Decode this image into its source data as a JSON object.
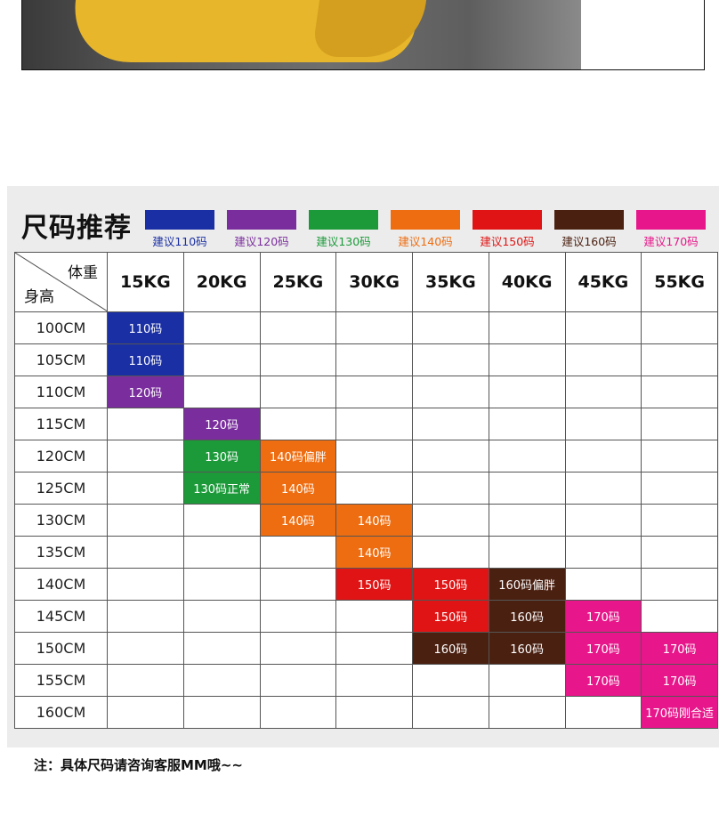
{
  "colors": {
    "110": "#1a2fa3",
    "120": "#7a2d9d",
    "130": "#1c9a3a",
    "140": "#ee6d11",
    "150": "#e01414",
    "160": "#4a2011",
    "170": "#e7168a"
  },
  "chart": {
    "title": "尺码推荐",
    "legend": [
      {
        "key": "110",
        "label": "建议110码",
        "label_color": "#1a2fa3"
      },
      {
        "key": "120",
        "label": "建议120码",
        "label_color": "#7a2d9d"
      },
      {
        "key": "130",
        "label": "建议130码",
        "label_color": "#1c9a3a"
      },
      {
        "key": "140",
        "label": "建议140码",
        "label_color": "#ee6d11"
      },
      {
        "key": "150",
        "label": "建议150码",
        "label_color": "#e01414"
      },
      {
        "key": "160",
        "label": "建议160码",
        "label_color": "#4a2011"
      },
      {
        "key": "170",
        "label": "建议170码",
        "label_color": "#e7168a"
      }
    ],
    "corner": {
      "weight_label": "体重",
      "height_label": "身高"
    },
    "weights": [
      "15KG",
      "20KG",
      "25KG",
      "30KG",
      "35KG",
      "40KG",
      "45KG",
      "55KG"
    ],
    "rows": [
      {
        "height": "100CM",
        "cells": [
          {
            "text": "110码",
            "c": "110"
          },
          null,
          null,
          null,
          null,
          null,
          null,
          null
        ]
      },
      {
        "height": "105CM",
        "cells": [
          {
            "text": "110码",
            "c": "110"
          },
          null,
          null,
          null,
          null,
          null,
          null,
          null
        ]
      },
      {
        "height": "110CM",
        "cells": [
          {
            "text": "120码",
            "c": "120"
          },
          null,
          null,
          null,
          null,
          null,
          null,
          null
        ]
      },
      {
        "height": "115CM",
        "cells": [
          null,
          {
            "text": "120码",
            "c": "120"
          },
          null,
          null,
          null,
          null,
          null,
          null
        ]
      },
      {
        "height": "120CM",
        "cells": [
          null,
          {
            "text": "130码",
            "c": "130"
          },
          {
            "text": "140码偏胖",
            "c": "140"
          },
          null,
          null,
          null,
          null,
          null
        ]
      },
      {
        "height": "125CM",
        "cells": [
          null,
          {
            "text": "130码正常",
            "c": "130"
          },
          {
            "text": "140码",
            "c": "140"
          },
          null,
          null,
          null,
          null,
          null
        ]
      },
      {
        "height": "130CM",
        "cells": [
          null,
          null,
          {
            "text": "140码",
            "c": "140"
          },
          {
            "text": "140码",
            "c": "140"
          },
          null,
          null,
          null,
          null
        ]
      },
      {
        "height": "135CM",
        "cells": [
          null,
          null,
          null,
          {
            "text": "140码",
            "c": "140"
          },
          null,
          null,
          null,
          null
        ]
      },
      {
        "height": "140CM",
        "cells": [
          null,
          null,
          null,
          {
            "text": "150码",
            "c": "150"
          },
          {
            "text": "150码",
            "c": "150"
          },
          {
            "text": "160码偏胖",
            "c": "160"
          },
          null,
          null
        ]
      },
      {
        "height": "145CM",
        "cells": [
          null,
          null,
          null,
          null,
          {
            "text": "150码",
            "c": "150"
          },
          {
            "text": "160码",
            "c": "160"
          },
          {
            "text": "170码",
            "c": "170"
          },
          null
        ]
      },
      {
        "height": "150CM",
        "cells": [
          null,
          null,
          null,
          null,
          {
            "text": "160码",
            "c": "160"
          },
          {
            "text": "160码",
            "c": "160"
          },
          {
            "text": "170码",
            "c": "170"
          },
          {
            "text": "170码",
            "c": "170"
          }
        ]
      },
      {
        "height": "155CM",
        "cells": [
          null,
          null,
          null,
          null,
          null,
          null,
          {
            "text": "170码",
            "c": "170"
          },
          {
            "text": "170码",
            "c": "170"
          }
        ]
      },
      {
        "height": "160CM",
        "cells": [
          null,
          null,
          null,
          null,
          null,
          null,
          null,
          {
            "text": "170码刚合适",
            "c": "170"
          }
        ]
      }
    ]
  },
  "note": "注：具体尺码请咨询客服MM哦~~"
}
